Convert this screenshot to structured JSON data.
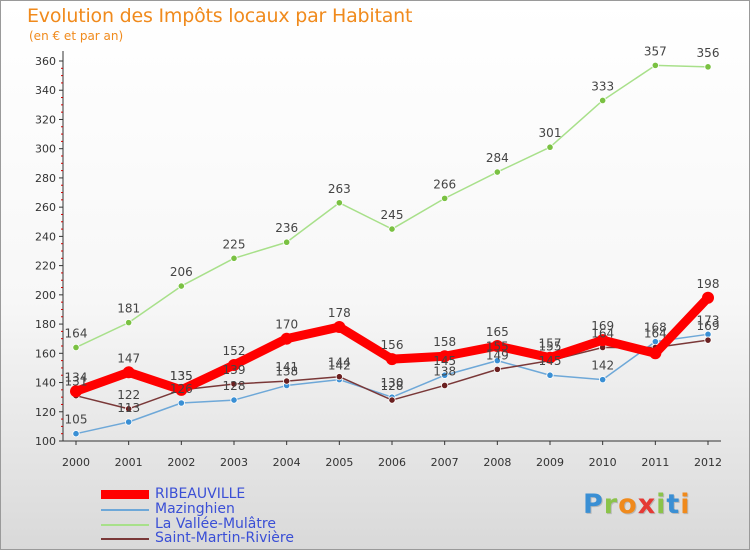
{
  "title": "Evolution des Impôts locaux par Habitant",
  "subtitle": "(en € et par an)",
  "brand": {
    "text": "Proxiti",
    "letter_colors": [
      "#3a8fd4",
      "#8bc34a",
      "#f08a1c",
      "#e53935",
      "#8bc34a",
      "#3a8fd4",
      "#f08a1c"
    ]
  },
  "chart_data": {
    "type": "line",
    "title": "Evolution des Impôts locaux par Habitant",
    "subtitle": "(en € et par an)",
    "x": [
      "2000",
      "2001",
      "2002",
      "2003",
      "2004",
      "2005",
      "2006",
      "2007",
      "2008",
      "2009",
      "2010",
      "2011",
      "2012"
    ],
    "ylim": [
      100,
      360
    ],
    "yticks": [
      100,
      120,
      140,
      160,
      180,
      200,
      220,
      240,
      260,
      280,
      300,
      320,
      340,
      360
    ],
    "grid": false,
    "legend_position": "bottom-left",
    "series": [
      {
        "name": "RIBEAUVILLE",
        "color": "#ff0000",
        "marker_color": "#ff0000",
        "style": "thick",
        "values": [
          134,
          147,
          135,
          152,
          170,
          178,
          156,
          158,
          165,
          157,
          169,
          160,
          198
        ],
        "data_labels": [
          "134",
          "147",
          "135",
          "152",
          "170",
          "178",
          "156",
          "158",
          "165",
          "157",
          "169",
          "",
          "198"
        ]
      },
      {
        "name": "Mazinghien",
        "color": "#6ea8d8",
        "marker_color": "#3a8fd4",
        "style": "thin",
        "values": [
          105,
          113,
          126,
          128,
          138,
          142,
          130,
          145,
          155,
          145,
          142,
          168,
          173
        ],
        "data_labels": [
          "105",
          "113",
          "126",
          "128",
          "138",
          "142",
          "130",
          "145",
          "155",
          "145",
          "142",
          "168",
          "173"
        ]
      },
      {
        "name": "La Vallée-Mulâtre",
        "color": "#a8e08a",
        "marker_color": "#7ac142",
        "style": "thin",
        "values": [
          164,
          181,
          206,
          225,
          236,
          263,
          245,
          266,
          284,
          301,
          333,
          357,
          356
        ],
        "data_labels": [
          "164",
          "181",
          "206",
          "225",
          "236",
          "263",
          "245",
          "266",
          "284",
          "301",
          "333",
          "357",
          "356"
        ]
      },
      {
        "name": "Saint-Martin-Rivière",
        "color": "#7a3838",
        "marker_color": "#6b2020",
        "style": "thin",
        "values": [
          131,
          122,
          135,
          139,
          141,
          144,
          128,
          138,
          149,
          155,
          164,
          164,
          169
        ],
        "data_labels": [
          "131",
          "122",
          "135",
          "139",
          "141",
          "144",
          "128",
          "138",
          "149",
          "155",
          "164",
          "164",
          "169"
        ]
      }
    ]
  }
}
